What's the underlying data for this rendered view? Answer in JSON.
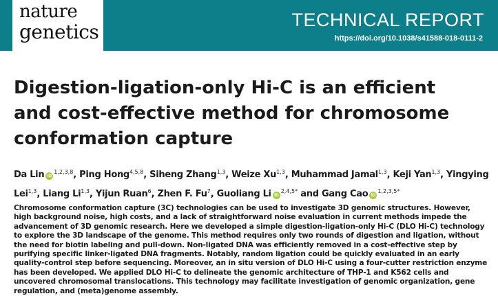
{
  "header": {
    "journal_line1": "nature",
    "journal_line2": "genetics",
    "article_type": "TECHNICAL REPORT",
    "doi": "https://doi.org/10.1038/s41588-018-0111-2",
    "colors": {
      "banner": "#0d7f8b",
      "orcid": "#a6ce39"
    }
  },
  "title": "Digestion-ligation-only Hi-C is an efficient and cost-effective method for chromosome conformation capture",
  "authors": [
    {
      "name": "Da Lin",
      "orcid": true,
      "affil": "1,2,3,8",
      "sep": ", "
    },
    {
      "name": "Ping Hong",
      "orcid": false,
      "affil": "4,5,8",
      "sep": ", "
    },
    {
      "name": "Siheng Zhang",
      "orcid": false,
      "affil": "1,3",
      "sep": ", "
    },
    {
      "name": "Weize Xu",
      "orcid": false,
      "affil": "1,3",
      "sep": ", "
    },
    {
      "name": "Muhammad Jamal",
      "orcid": false,
      "affil": "1,3",
      "sep": ", "
    },
    {
      "name": "Keji Yan",
      "orcid": false,
      "affil": "1,3",
      "sep": ", "
    },
    {
      "name": "Yingying Lei",
      "orcid": false,
      "affil": "1,3",
      "sep": ", "
    },
    {
      "name": "Liang Li",
      "orcid": false,
      "affil": "1,3",
      "sep": ", "
    },
    {
      "name": "Yijun Ruan",
      "orcid": false,
      "affil": "6",
      "sep": ", "
    },
    {
      "name": "Zhen F. Fu",
      "orcid": false,
      "affil": "7",
      "sep": ", "
    },
    {
      "name": "Guoliang Li",
      "orcid": true,
      "affil": "2,4,5*",
      "sep": " and "
    },
    {
      "name": "Gang Cao",
      "orcid": true,
      "affil": "1,2,3,5*",
      "sep": ""
    }
  ],
  "orcid_label": "iD",
  "abstract": "Chromosome conformation capture (3C) technologies can be used to investigate 3D genomic structures. However, high background noise, high costs, and a lack of straightforward noise evaluation in current methods impede the advancement of 3D genomic research. Here we developed a simple digestion-ligation-only Hi-C (DLO Hi-C) technology to explore the 3D landscape of the genome. This method requires only two rounds of digestion and ligation, without the need for biotin labeling and pull-down. Non-ligated DNA was efficiently removed in a cost-effective step by purifying specific linker-ligated DNA fragments. Notably, random ligation could be quickly evaluated in an early quality-control step before sequencing. Moreover, an in situ version of DLO Hi-C using a four-cutter restriction enzyme has been developed. We applied DLO Hi-C to delineate the genomic architecture of THP-1 and K562 cells and uncovered chromosomal translocations. This technology may facilitate investigation of genomic organization, gene regulation, and (meta)genome assembly."
}
